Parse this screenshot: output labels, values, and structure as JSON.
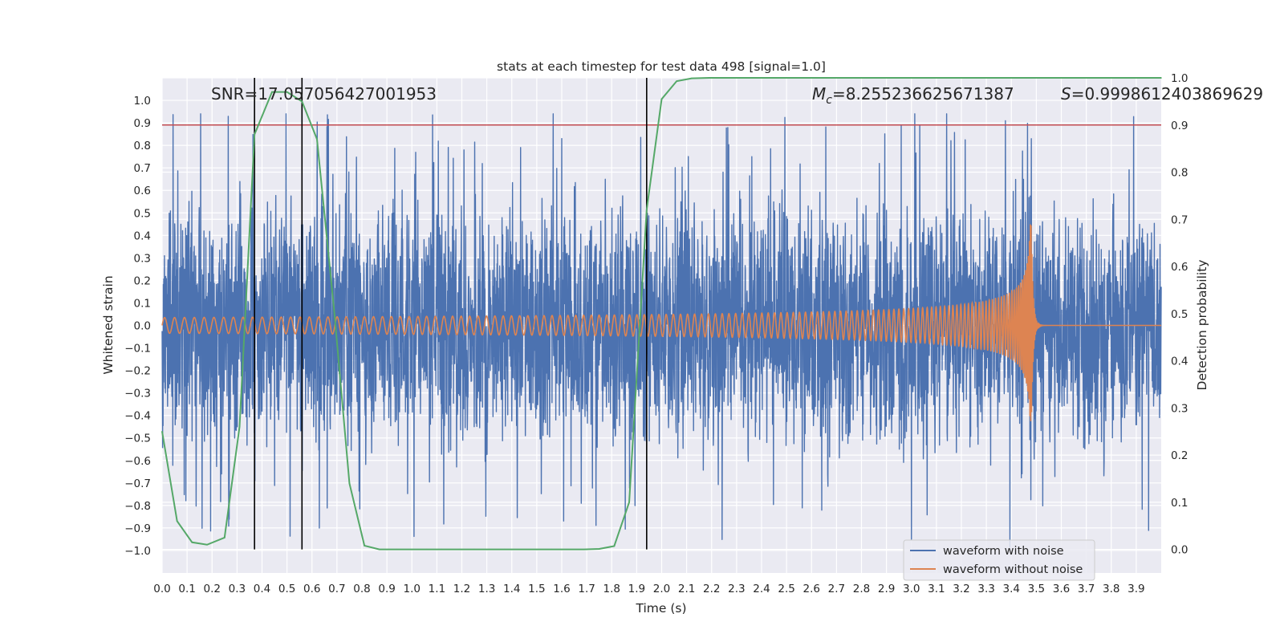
{
  "chart_data": {
    "type": "line",
    "title": "stats at each timestep for test data 498 [signal=1.0]",
    "xlabel": "Time (s)",
    "ylabel_left": "Whitened strain",
    "ylabel_right": "Detection probability",
    "xlim": [
      0.0,
      4.0
    ],
    "ylim_left": [
      -1.1,
      1.1
    ],
    "ylim_right": [
      -0.05,
      1.0
    ],
    "x_ticks": [
      "0.0",
      "0.1",
      "0.2",
      "0.3",
      "0.4",
      "0.5",
      "0.6",
      "0.7",
      "0.8",
      "0.9",
      "1.0",
      "1.1",
      "1.2",
      "1.3",
      "1.4",
      "1.5",
      "1.6",
      "1.7",
      "1.8",
      "1.9",
      "2.0",
      "2.1",
      "2.2",
      "2.3",
      "2.4",
      "2.5",
      "2.6",
      "2.7",
      "2.8",
      "2.9",
      "3.0",
      "3.1",
      "3.2",
      "3.3",
      "3.4",
      "3.5",
      "3.6",
      "3.7",
      "3.8",
      "3.9"
    ],
    "y_ticks_left": [
      "1.0",
      "0.9",
      "0.8",
      "0.7",
      "0.6",
      "0.5",
      "0.4",
      "0.3",
      "0.2",
      "0.1",
      "0.0",
      "-0.1",
      "-0.2",
      "-0.3",
      "-0.4",
      "-0.5",
      "-0.6",
      "-0.7",
      "-0.8",
      "-0.9",
      "-1.0"
    ],
    "y_ticks_right": [
      "1.0",
      "0.9",
      "0.8",
      "0.7",
      "0.6",
      "0.5",
      "0.4",
      "0.3",
      "0.2",
      "0.1",
      "0.0"
    ],
    "grid": true,
    "legend": {
      "placement": "lower-right",
      "entries": [
        "waveform with noise",
        "waveform without noise"
      ]
    },
    "annotations": {
      "snr": "SNR=17.057056427001953",
      "mc_symbol": "M",
      "mc_subscript": "c",
      "mc_value": "=8.255236625671387",
      "s_symbol": "S",
      "s_value": "=0.9998612403869629"
    },
    "threshold_probability": 0.9,
    "vertical_markers_s": [
      0.37,
      0.56,
      1.94
    ],
    "series": [
      {
        "name": "waveform with noise",
        "axis": "left",
        "color": "#4c72b0",
        "kind": "noise",
        "noise_amplitude_strain": 0.62,
        "max_spike_strain": 0.94,
        "min_spike_strain": -1.0
      },
      {
        "name": "waveform without noise",
        "axis": "left",
        "color": "#dd8452",
        "kind": "chirp",
        "merger_time_s": 3.48,
        "initial_amplitude_strain": 0.035,
        "peak_amplitude_strain": 0.45,
        "initial_frequency_hz": 25
      },
      {
        "name": "detection probability",
        "axis": "right",
        "color": "#55a868",
        "x": [
          0.0,
          0.06,
          0.12,
          0.18,
          0.25,
          0.31,
          0.37,
          0.44,
          0.5,
          0.56,
          0.62,
          0.69,
          0.75,
          0.81,
          0.87,
          0.94,
          1.0,
          1.06,
          1.12,
          1.19,
          1.25,
          1.31,
          1.37,
          1.44,
          1.5,
          1.56,
          1.62,
          1.69,
          1.75,
          1.81,
          1.87,
          1.94,
          2.0,
          2.06,
          2.12,
          2.19,
          2.5,
          3.0,
          3.5,
          4.0
        ],
        "y": [
          0.25,
          0.06,
          0.015,
          0.01,
          0.025,
          0.26,
          0.88,
          0.97,
          0.97,
          0.95,
          0.87,
          0.5,
          0.14,
          0.008,
          0.0,
          0.0,
          0.0,
          0.0,
          0.0,
          0.0,
          0.0,
          0.0,
          0.0,
          0.0,
          0.0,
          0.0,
          0.0,
          0.0,
          0.001,
          0.007,
          0.1,
          0.72,
          0.955,
          0.993,
          0.999,
          0.9999,
          0.9999,
          0.9999,
          0.9999,
          0.9999
        ]
      }
    ],
    "threshold_color": "#c44e52",
    "marker_color": "#000000"
  }
}
